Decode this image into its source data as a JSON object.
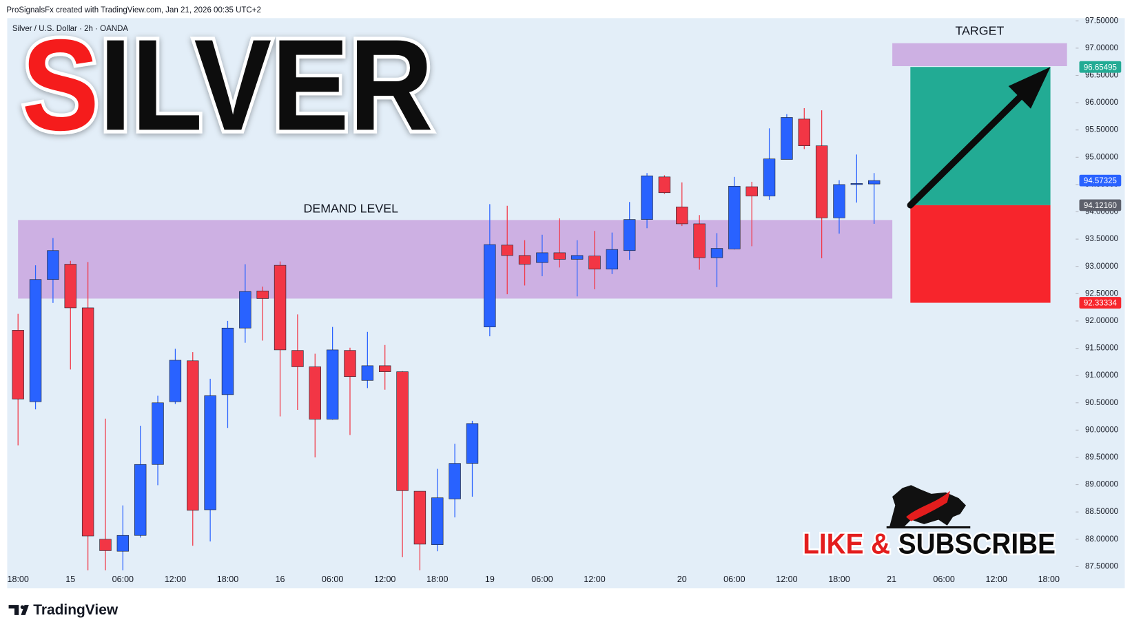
{
  "header": {
    "attribution": "ProSignalsFx created with TradingView.com, Jan 21, 2026 00:35 UTC+2",
    "symbol": "Silver / U.S. Dollar · 2h · OANDA"
  },
  "footer_brand": "TradingView",
  "chart_data": {
    "type": "candlestick",
    "title_parts": [
      "S",
      "ILVER"
    ],
    "cta_parts": [
      "LIKE &",
      "SUBSCRIBE"
    ],
    "up_color": "#2962ff",
    "down_color": "#f23645",
    "grid": false,
    "categories": [
      "18:00",
      null,
      null,
      "15",
      null,
      null,
      "06:00",
      null,
      null,
      "12:00",
      null,
      null,
      "18:00",
      null,
      null,
      "16",
      null,
      null,
      "06:00",
      null,
      null,
      "12:00",
      null,
      null,
      "18:00",
      null,
      null,
      "19",
      null,
      null,
      "06:00",
      null,
      null,
      "12:00",
      null,
      null,
      null,
      null,
      "20",
      null,
      null,
      "06:00",
      null,
      null,
      "12:00",
      null,
      null,
      "18:00",
      null,
      null,
      "21",
      null,
      null,
      "06:00",
      null,
      null,
      "12:00",
      null,
      null,
      "18:00",
      null
    ],
    "open": [
      91.83,
      90.52,
      92.76,
      93.04,
      92.24,
      88.0,
      87.78,
      88.07,
      89.37,
      90.52,
      91.27,
      88.54,
      90.65,
      91.87,
      92.55,
      93.02,
      91.46,
      91.16,
      90.2,
      91.46,
      90.91,
      91.18,
      91.07,
      88.88,
      87.9,
      88.74,
      89.39,
      91.89,
      93.39,
      93.2,
      93.07,
      93.25,
      93.13,
      93.19,
      92.95,
      93.29,
      93.86,
      94.64,
      94.09,
      93.78,
      93.16,
      93.32,
      94.46,
      94.29,
      94.96,
      95.7,
      95.21,
      93.89,
      94.51,
      94.51,
      null,
      null,
      null,
      null,
      null,
      null,
      null,
      null,
      null,
      null,
      null
    ],
    "high": [
      92.13,
      93.02,
      93.52,
      93.1,
      93.08,
      90.21,
      88.62,
      90.08,
      90.63,
      91.49,
      91.43,
      90.94,
      92.0,
      93.04,
      92.63,
      93.09,
      92.12,
      91.4,
      91.89,
      91.51,
      91.8,
      91.56,
      91.08,
      88.88,
      89.29,
      89.75,
      90.17,
      94.14,
      94.11,
      93.48,
      93.58,
      93.88,
      93.48,
      93.65,
      93.62,
      94.18,
      94.71,
      94.67,
      94.54,
      93.94,
      93.61,
      94.64,
      94.55,
      95.53,
      95.79,
      95.9,
      95.86,
      94.58,
      95.05,
      94.71,
      null,
      null,
      null,
      null,
      null,
      null,
      null,
      null,
      null,
      null,
      null
    ],
    "low": [
      89.72,
      90.38,
      92.33,
      91.11,
      87.43,
      87.43,
      87.43,
      88.03,
      88.99,
      90.48,
      87.88,
      87.96,
      90.04,
      91.6,
      91.64,
      90.25,
      90.37,
      89.5,
      90.19,
      89.91,
      90.77,
      90.74,
      87.67,
      87.43,
      87.78,
      88.4,
      88.78,
      91.72,
      92.49,
      92.65,
      92.82,
      92.98,
      92.45,
      92.58,
      92.86,
      93.12,
      93.7,
      94.33,
      93.74,
      92.94,
      92.62,
      93.31,
      93.37,
      94.22,
      94.96,
      95.15,
      93.15,
      93.6,
      94.17,
      93.78,
      null,
      null,
      null,
      null,
      null,
      null,
      null,
      null,
      null,
      null,
      null
    ],
    "close": [
      90.57,
      92.76,
      93.29,
      92.24,
      88.06,
      87.79,
      88.07,
      89.37,
      90.5,
      91.28,
      88.53,
      90.63,
      91.87,
      92.54,
      92.41,
      91.47,
      91.16,
      90.2,
      91.47,
      90.98,
      91.18,
      91.07,
      88.89,
      87.91,
      88.76,
      89.39,
      90.12,
      93.4,
      93.2,
      93.04,
      93.25,
      93.13,
      93.2,
      92.95,
      93.31,
      93.86,
      94.66,
      94.35,
      93.78,
      93.16,
      93.33,
      94.47,
      94.29,
      94.97,
      95.73,
      95.21,
      93.89,
      94.5,
      94.52,
      94.57325,
      null,
      null,
      null,
      null,
      null,
      null,
      null,
      null,
      null,
      null,
      null
    ],
    "ylim": [
      87.1,
      97.55
    ],
    "yticks": [
      {
        "value": 87.5,
        "label": "87.50000"
      },
      {
        "value": 88,
        "label": "88.00000"
      },
      {
        "value": 88.5,
        "label": "88.50000"
      },
      {
        "value": 89,
        "label": "89.00000"
      },
      {
        "value": 89.5,
        "label": "89.50000"
      },
      {
        "value": 90,
        "label": "90.00000"
      },
      {
        "value": 90.5,
        "label": "90.50000"
      },
      {
        "value": 91,
        "label": "91.00000"
      },
      {
        "value": 91.5,
        "label": "91.50000"
      },
      {
        "value": 92,
        "label": "92.00000"
      },
      {
        "value": 92.5,
        "label": "92.50000"
      },
      {
        "value": 93,
        "label": "93.00000"
      },
      {
        "value": 93.5,
        "label": "93.50000"
      },
      {
        "value": 94,
        "label": "94.00000"
      },
      {
        "value": 94.5,
        "label": "94.50000"
      },
      {
        "value": 95,
        "label": "95.00000"
      },
      {
        "value": 95.5,
        "label": "95.50000"
      },
      {
        "value": 96,
        "label": "96.00000"
      },
      {
        "value": 96.5,
        "label": "96.50000"
      },
      {
        "value": 97,
        "label": "97.00000"
      },
      {
        "value": 97.5,
        "label": "97.50000"
      }
    ],
    "last_price": {
      "value": 94.57325,
      "label": "94.57325",
      "color": "#2962ff"
    },
    "demand_zone": {
      "label": "DEMAND LEVEL",
      "top": 93.85,
      "bottom": 92.41,
      "color": "#cdb0e3"
    },
    "target_zone": {
      "label": "TARGET",
      "top": 97.09,
      "bottom": 96.67,
      "color": "#cdb0e3"
    },
    "position": {
      "target": {
        "value": 96.65495,
        "label": "96.65495",
        "color": "#22ab94"
      },
      "entry": {
        "value": 94.1216,
        "label": "94.12160",
        "color": "#5d606b"
      },
      "stop": {
        "value": 92.33334,
        "label": "92.33334",
        "color": "#f7252c"
      }
    }
  }
}
